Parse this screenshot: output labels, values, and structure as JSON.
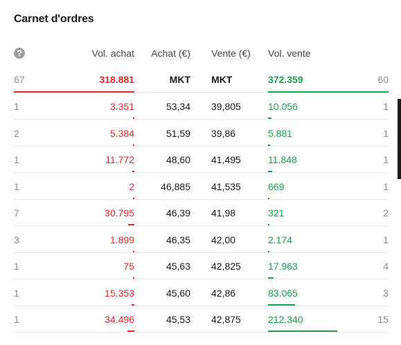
{
  "title": "Carnet d'ordres",
  "headers": {
    "vol_buy": "Vol. achat",
    "buy": "Achat (€)",
    "sell": "Vente (€)",
    "vol_sell": "Vol. vente"
  },
  "colors": {
    "buy": "#e4292b",
    "sell": "#16a34a"
  },
  "total": {
    "count_buy": "67",
    "vol_buy": "318.881",
    "price_buy": "MKT",
    "price_sell": "MKT",
    "vol_sell": "372.359",
    "count_sell": "60"
  },
  "rows": [
    {
      "count_buy": "1",
      "vol_buy": "3.351",
      "price_buy": "53,34",
      "price_sell": "39,805",
      "vol_sell": "10.056",
      "count_sell": "1",
      "bar_buy": 0.0097,
      "bar_sell": 0.0473
    },
    {
      "count_buy": "2",
      "vol_buy": "5.384",
      "price_buy": "51,59",
      "price_sell": "39,86",
      "vol_sell": "5.881",
      "count_sell": "1",
      "bar_buy": 0.0156,
      "bar_sell": 0.0277
    },
    {
      "count_buy": "1",
      "vol_buy": "11.772",
      "price_buy": "48,60",
      "price_sell": "41,495",
      "vol_sell": "11.848",
      "count_sell": "1",
      "bar_buy": 0.0341,
      "bar_sell": 0.0558
    },
    {
      "count_buy": "1",
      "vol_buy": "2",
      "price_buy": "46,885",
      "price_sell": "41,535",
      "vol_sell": "669",
      "count_sell": "1",
      "bar_buy": 0.0,
      "bar_sell": 0.0031
    },
    {
      "count_buy": "7",
      "vol_buy": "30.795",
      "price_buy": "46,39",
      "price_sell": "41,98",
      "vol_sell": "321",
      "count_sell": "2",
      "bar_buy": 0.0893,
      "bar_sell": 0.0015
    },
    {
      "count_buy": "3",
      "vol_buy": "1.899",
      "price_buy": "46,35",
      "price_sell": "42,00",
      "vol_sell": "2.174",
      "count_sell": "1",
      "bar_buy": 0.0055,
      "bar_sell": 0.0102
    },
    {
      "count_buy": "1",
      "vol_buy": "75",
      "price_buy": "45,63",
      "price_sell": "42,825",
      "vol_sell": "17.963",
      "count_sell": "4",
      "bar_buy": 0.0002,
      "bar_sell": 0.0846
    },
    {
      "count_buy": "1",
      "vol_buy": "15.353",
      "price_buy": "45,60",
      "price_sell": "42,86",
      "vol_sell": "83.065",
      "count_sell": "3",
      "bar_buy": 0.0445,
      "bar_sell": 0.3912
    },
    {
      "count_buy": "1",
      "vol_buy": "34.496",
      "price_buy": "45,53",
      "price_sell": "42,875",
      "vol_sell": "212.340",
      "count_sell": "15",
      "bar_buy": 0.1,
      "bar_sell": 1.0
    }
  ]
}
